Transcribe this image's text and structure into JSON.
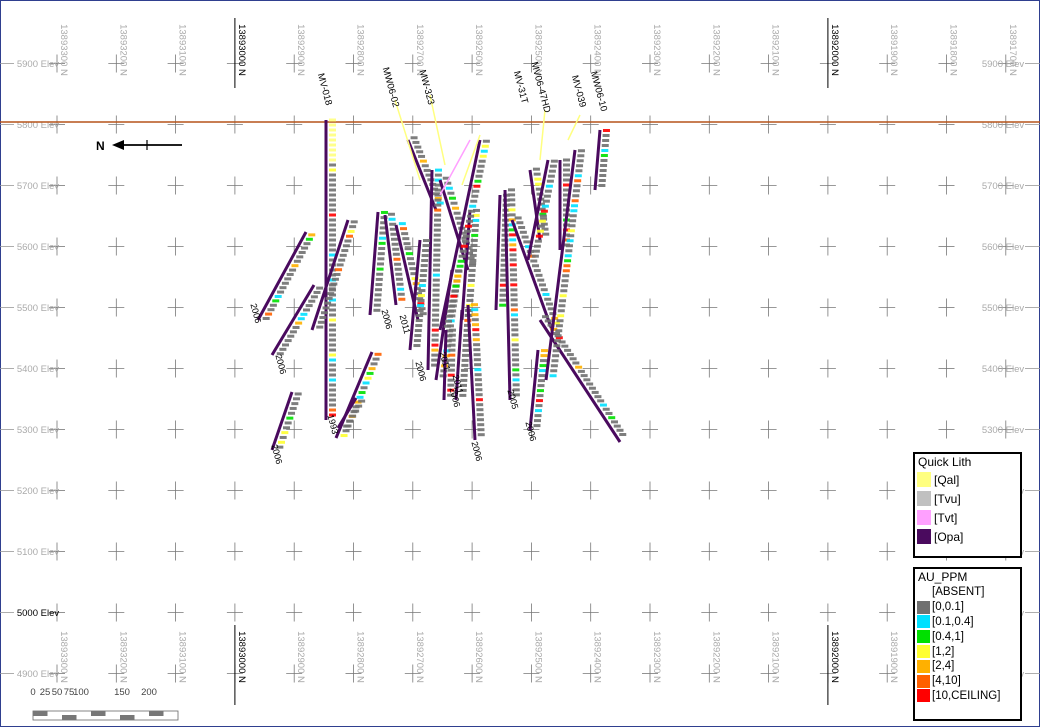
{
  "section": {
    "north_arrow_label": "N",
    "scale_labels": [
      "0",
      "25",
      "50",
      "75",
      "100",
      "150",
      "200"
    ],
    "northing_labels": [
      "13893300 N",
      "13893200 N",
      "13893100 N",
      "13893000 N",
      "13892900 N",
      "13892800 N",
      "13892700 N",
      "13892600 N",
      "13892500 N",
      "13892400 N",
      "13892300 N",
      "13892200 N",
      "13892100 N",
      "13892000 N",
      "13891900 N",
      "13891800 N",
      "13891700 N"
    ],
    "major_northings": [
      "13893000 N",
      "13892000 N"
    ],
    "elevation_labels": [
      "5900 Elev",
      "5800 Elev",
      "5700 Elev",
      "5600 Elev",
      "5500 Elev",
      "5400 Elev",
      "5300 Elev",
      "5200 Elev",
      "5100 Elev",
      "5000 Elev",
      "4900 Elev"
    ],
    "topography_elev": "5800 Elev",
    "hole_labels": [
      "MV-018",
      "MW06-02",
      "MW-323",
      "MV-31T",
      "MV06-47HD",
      "MV-039",
      "MW06-10"
    ],
    "year_labels": [
      "2006",
      "2006",
      "1993",
      "2006",
      "2011",
      "2006",
      "2011",
      "2006",
      "2011",
      "2006",
      "2005",
      "2006",
      "2006"
    ],
    "colors": {
      "topography": "#b5541a",
      "frame": "#2f3f8f",
      "Qal": "#ffff80",
      "Tvu": "#c0c0c0",
      "Tvt": "#ffa0ff",
      "Opa": "#4a0a5e",
      "absent": "#ffffff",
      "au_0_0.1": "#707070",
      "au_0.1_0.4": "#00e0ff",
      "au_0.4_1": "#00e000",
      "au_1_2": "#ffff30",
      "au_2_4": "#ffb000",
      "au_4_10": "#ff6000",
      "au_10_ceiling": "#ff0000"
    }
  },
  "legend_lith": {
    "title": "Quick Lith",
    "items": [
      {
        "label": "[Qal]",
        "color": "#ffff80"
      },
      {
        "label": "[Tvu]",
        "color": "#c0c0c0"
      },
      {
        "label": "[Tvt]",
        "color": "#ffa0ff"
      },
      {
        "label": "[Opa]",
        "color": "#4a0a5e"
      }
    ]
  },
  "legend_au": {
    "title": "AU_PPM",
    "items": [
      {
        "label": "[ABSENT]",
        "color": "#ffffff"
      },
      {
        "label": "[0,0.1]",
        "color": "#707070"
      },
      {
        "label": "[0.1,0.4]",
        "color": "#00e0ff"
      },
      {
        "label": "[0.4,1]",
        "color": "#00e000"
      },
      {
        "label": "[1,2]",
        "color": "#ffff30"
      },
      {
        "label": "[2,4]",
        "color": "#ffb000"
      },
      {
        "label": "[4,10]",
        "color": "#ff6000"
      },
      {
        "label": "[10,CEILING]",
        "color": "#ff0000"
      }
    ]
  }
}
